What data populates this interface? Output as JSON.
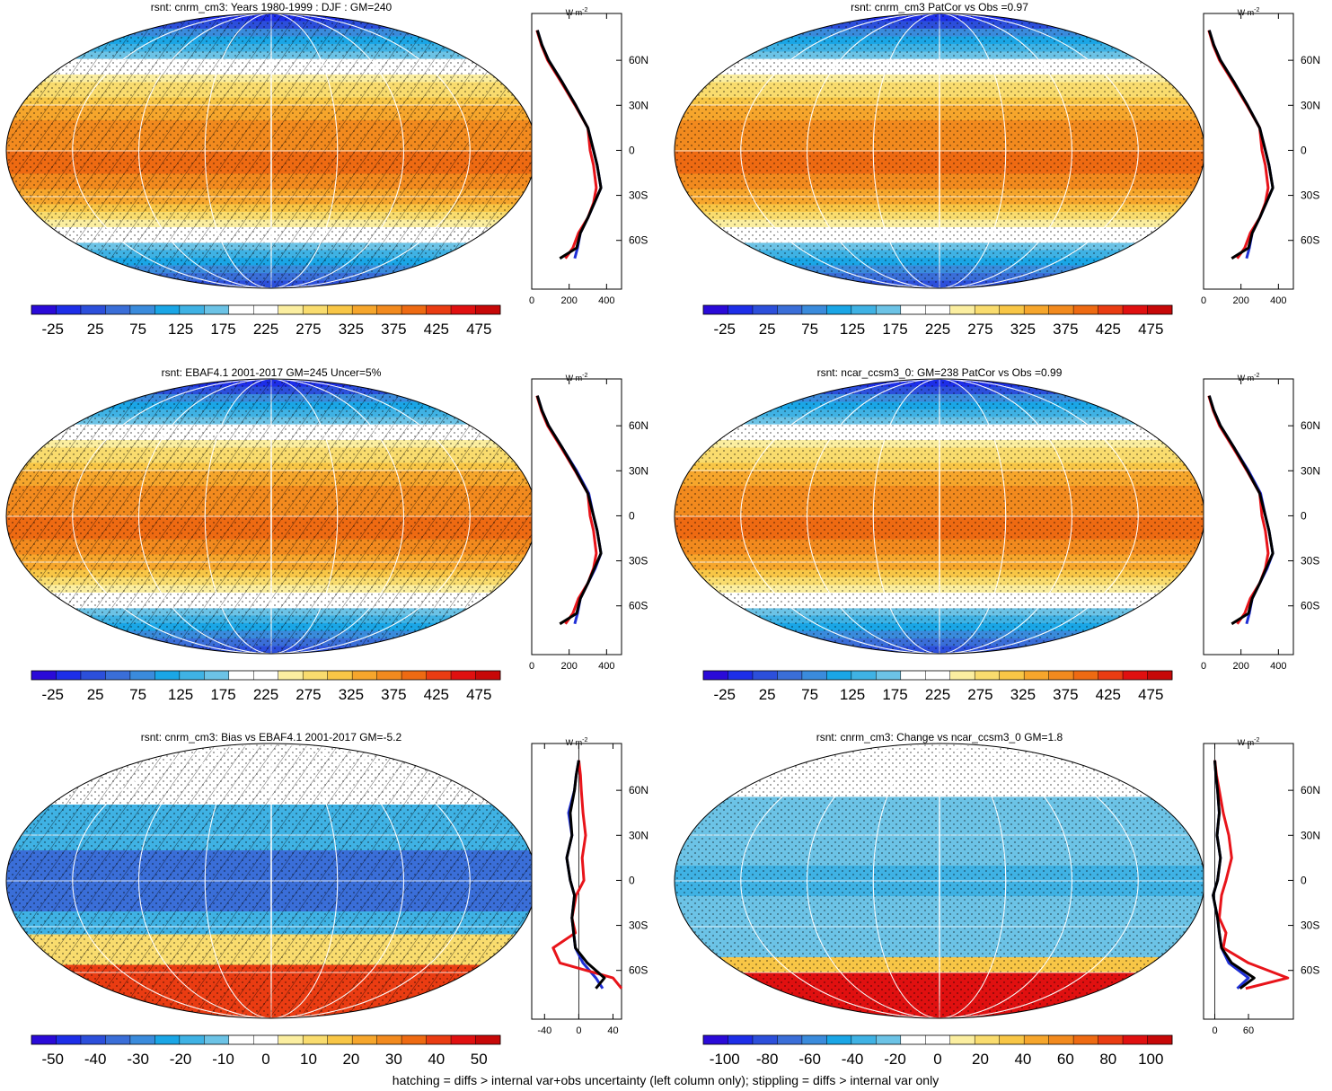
{
  "figure": {
    "footnote": "hatching = diffs > internal var+obs uncertainty (left column only); stippling = diffs > internal var only",
    "zonal_unit": "W m",
    "zonal_unit_sup": "-2"
  },
  "chart_data": [
    {
      "type": "heatmap",
      "title": "rsnt: cnrm_cm3: Years 1980-1999 : DJF : GM=240",
      "colorbar_ticks": [
        "-25",
        "25",
        "75",
        "125",
        "175",
        "225",
        "275",
        "325",
        "375",
        "425",
        "475"
      ],
      "colorbar_min": -50,
      "colorbar_max": 500,
      "hatching": true,
      "stippling": true,
      "zonal_mean": {
        "xlim": [
          0,
          480
        ],
        "xticks": [
          "0",
          "200",
          "400"
        ],
        "lat_ticks": [
          "60N",
          "30N",
          "0",
          "30S",
          "60S"
        ],
        "series": [
          {
            "color": "#1f2fd6",
            "lat": [
              80,
              70,
              60,
              45,
              30,
              15,
              0,
              -10,
              -25,
              -35,
              -45,
              -55,
              -65,
              -72
            ],
            "values": [
              30,
              55,
              90,
              165,
              235,
              300,
              330,
              350,
              370,
              335,
              300,
              260,
              245,
              230
            ]
          },
          {
            "color": "#e8141a",
            "lat": [
              80,
              70,
              60,
              45,
              30,
              15,
              0,
              -10,
              -25,
              -35,
              -45,
              -55,
              -65,
              -72
            ],
            "values": [
              28,
              52,
              85,
              160,
              232,
              300,
              312,
              330,
              345,
              330,
              300,
              250,
              220,
              180
            ]
          },
          {
            "color": "#000000",
            "lat": [
              80,
              70,
              60,
              45,
              30,
              15,
              0,
              -10,
              -25,
              -35,
              -45,
              -55,
              -65,
              -72
            ],
            "values": [
              30,
              55,
              90,
              165,
              235,
              300,
              330,
              350,
              370,
              335,
              300,
              260,
              240,
              150
            ]
          }
        ]
      }
    },
    {
      "type": "heatmap",
      "title": "rsnt: cnrm_cm3 PatCor vs Obs =0.97",
      "colorbar_ticks": [
        "-25",
        "25",
        "75",
        "125",
        "175",
        "225",
        "275",
        "325",
        "375",
        "425",
        "475"
      ],
      "colorbar_min": -50,
      "colorbar_max": 500,
      "hatching": false,
      "stippling": true,
      "zonal_mean": {
        "xlim": [
          0,
          480
        ],
        "xticks": [
          "0",
          "200",
          "400"
        ],
        "lat_ticks": [
          "60N",
          "30N",
          "0",
          "30S",
          "60S"
        ],
        "series": [
          {
            "color": "#1f2fd6",
            "lat": [
              80,
              70,
              60,
              45,
              30,
              15,
              0,
              -10,
              -25,
              -35,
              -45,
              -55,
              -65,
              -72
            ],
            "values": [
              30,
              55,
              90,
              165,
              235,
              300,
              330,
              350,
              370,
              335,
              300,
              260,
              245,
              230
            ]
          },
          {
            "color": "#e8141a",
            "lat": [
              80,
              70,
              60,
              45,
              30,
              15,
              0,
              -10,
              -25,
              -35,
              -45,
              -55,
              -65,
              -72
            ],
            "values": [
              28,
              52,
              85,
              160,
              232,
              300,
              312,
              330,
              345,
              330,
              300,
              250,
              220,
              180
            ]
          },
          {
            "color": "#000000",
            "lat": [
              80,
              70,
              60,
              45,
              30,
              15,
              0,
              -10,
              -25,
              -35,
              -45,
              -55,
              -65,
              -72
            ],
            "values": [
              30,
              55,
              90,
              165,
              235,
              300,
              330,
              350,
              370,
              335,
              300,
              260,
              240,
              150
            ]
          }
        ]
      }
    },
    {
      "type": "heatmap",
      "title": "rsnt: EBAF4.1 2001-2017 GM=245 Uncer=5%",
      "colorbar_ticks": [
        "-25",
        "25",
        "75",
        "125",
        "175",
        "225",
        "275",
        "325",
        "375",
        "425",
        "475"
      ],
      "colorbar_min": -50,
      "colorbar_max": 500,
      "hatching": true,
      "stippling": true,
      "zonal_mean": {
        "xlim": [
          0,
          480
        ],
        "xticks": [
          "0",
          "200",
          "400"
        ],
        "lat_ticks": [
          "60N",
          "30N",
          "0",
          "30S",
          "60S"
        ],
        "series": [
          {
            "color": "#1f2fd6",
            "lat": [
              80,
              70,
              60,
              45,
              30,
              15,
              0,
              -10,
              -25,
              -35,
              -45,
              -55,
              -65,
              -72
            ],
            "values": [
              30,
              55,
              90,
              165,
              240,
              305,
              330,
              350,
              370,
              340,
              300,
              260,
              245,
              230
            ]
          },
          {
            "color": "#e8141a",
            "lat": [
              80,
              70,
              60,
              45,
              30,
              15,
              0,
              -10,
              -25,
              -35,
              -45,
              -55,
              -65,
              -72
            ],
            "values": [
              28,
              52,
              85,
              160,
              232,
              300,
              312,
              330,
              345,
              330,
              300,
              250,
              220,
              180
            ]
          },
          {
            "color": "#000000",
            "lat": [
              80,
              70,
              60,
              45,
              30,
              15,
              0,
              -10,
              -25,
              -35,
              -45,
              -55,
              -65,
              -72
            ],
            "values": [
              30,
              55,
              90,
              165,
              235,
              300,
              330,
              350,
              370,
              335,
              300,
              260,
              240,
              150
            ]
          }
        ]
      }
    },
    {
      "type": "heatmap",
      "title": "rsnt: ncar_ccsm3_0: GM=238 PatCor vs Obs =0.99",
      "colorbar_ticks": [
        "-25",
        "25",
        "75",
        "125",
        "175",
        "225",
        "275",
        "325",
        "375",
        "425",
        "475"
      ],
      "colorbar_min": -50,
      "colorbar_max": 500,
      "hatching": false,
      "stippling": true,
      "zonal_mean": {
        "xlim": [
          0,
          480
        ],
        "xticks": [
          "0",
          "200",
          "400"
        ],
        "lat_ticks": [
          "60N",
          "30N",
          "0",
          "30S",
          "60S"
        ],
        "series": [
          {
            "color": "#1f2fd6",
            "lat": [
              80,
              70,
              60,
              45,
              30,
              15,
              0,
              -10,
              -25,
              -35,
              -45,
              -55,
              -65,
              -72
            ],
            "values": [
              30,
              55,
              90,
              165,
              240,
              305,
              330,
              350,
              370,
              340,
              300,
              260,
              245,
              230
            ]
          },
          {
            "color": "#e8141a",
            "lat": [
              80,
              70,
              60,
              45,
              30,
              15,
              0,
              -10,
              -25,
              -35,
              -45,
              -55,
              -65,
              -72
            ],
            "values": [
              28,
              52,
              85,
              160,
              232,
              300,
              312,
              330,
              345,
              330,
              300,
              250,
              220,
              180
            ]
          },
          {
            "color": "#000000",
            "lat": [
              80,
              70,
              60,
              45,
              30,
              15,
              0,
              -10,
              -25,
              -35,
              -45,
              -55,
              -65,
              -72
            ],
            "values": [
              30,
              55,
              90,
              165,
              235,
              300,
              330,
              350,
              370,
              335,
              300,
              260,
              240,
              150
            ]
          }
        ]
      }
    },
    {
      "type": "heatmap",
      "title": "rsnt: cnrm_cm3: Bias vs EBAF4.1 2001-2017 GM=-5.2",
      "colorbar_ticks": [
        "-50",
        "-40",
        "-30",
        "-20",
        "-10",
        "0",
        "10",
        "20",
        "30",
        "40",
        "50"
      ],
      "colorbar_min": -55,
      "colorbar_max": 55,
      "hatching": true,
      "stippling": true,
      "zonal_mean": {
        "xlim": [
          -55,
          50
        ],
        "xticks": [
          "-40",
          "0",
          "40"
        ],
        "lat_ticks": [
          "60N",
          "30N",
          "0",
          "30S",
          "60S"
        ],
        "series": [
          {
            "color": "#1f2fd6",
            "lat": [
              80,
              70,
              60,
              45,
              30,
              15,
              0,
              -10,
              -25,
              -35,
              -45,
              -55,
              -65,
              -72
            ],
            "values": [
              0,
              -3,
              -5,
              -12,
              -8,
              -14,
              -10,
              -5,
              -8,
              -6,
              -4,
              5,
              20,
              28
            ]
          },
          {
            "color": "#e8141a",
            "lat": [
              80,
              70,
              60,
              45,
              30,
              15,
              0,
              -10,
              -25,
              -35,
              -45,
              -55,
              -65,
              -72
            ],
            "values": [
              0,
              2,
              3,
              5,
              8,
              4,
              6,
              -3,
              -8,
              -4,
              -30,
              -22,
              40,
              50
            ]
          },
          {
            "color": "#000000",
            "lat": [
              80,
              70,
              60,
              45,
              30,
              15,
              0,
              -10,
              -25,
              -35,
              -45,
              -55,
              -65,
              -72
            ],
            "values": [
              0,
              -3,
              -5,
              -10,
              -8,
              -14,
              -10,
              -5,
              -8,
              -6,
              -4,
              10,
              30,
              20
            ]
          }
        ]
      }
    },
    {
      "type": "heatmap",
      "title": "rsnt: cnrm_cm3: Change vs ncar_ccsm3_0 GM=1.8",
      "colorbar_ticks": [
        "-100",
        "-80",
        "-60",
        "-40",
        "-20",
        "0",
        "20",
        "40",
        "60",
        "80",
        "100"
      ],
      "colorbar_min": -110,
      "colorbar_max": 110,
      "hatching": false,
      "stippling": true,
      "zonal_mean": {
        "xlim": [
          -20,
          140
        ],
        "xticks": [
          "0",
          "60"
        ],
        "lat_ticks": [
          "60N",
          "30N",
          "0",
          "30S",
          "60S"
        ],
        "series": [
          {
            "color": "#1f2fd6",
            "lat": [
              80,
              70,
              60,
              45,
              30,
              15,
              0,
              -10,
              -25,
              -35,
              -45,
              -55,
              -65,
              -72
            ],
            "values": [
              0,
              2,
              5,
              8,
              4,
              10,
              5,
              -3,
              5,
              8,
              12,
              25,
              60,
              40
            ]
          },
          {
            "color": "#e8141a",
            "lat": [
              80,
              70,
              60,
              45,
              30,
              15,
              0,
              -10,
              -25,
              -35,
              -45,
              -55,
              -65,
              -72
            ],
            "values": [
              0,
              3,
              8,
              15,
              25,
              30,
              20,
              12,
              8,
              20,
              15,
              60,
              130,
              55
            ]
          },
          {
            "color": "#000000",
            "lat": [
              80,
              70,
              60,
              45,
              30,
              15,
              0,
              -10,
              -25,
              -35,
              -45,
              -55,
              -65,
              -72
            ],
            "values": [
              0,
              2,
              5,
              8,
              4,
              10,
              5,
              -3,
              5,
              8,
              12,
              30,
              70,
              45
            ]
          }
        ]
      }
    }
  ]
}
